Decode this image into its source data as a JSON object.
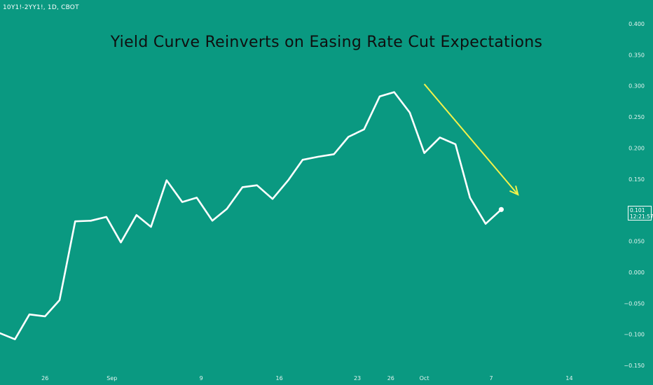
{
  "symbol_info": "10Y1!-2YY1!, 1D, CBOT",
  "colors": {
    "background": "#0a9981",
    "line": "#ffffff",
    "arrow": "#f2f24a",
    "axis_text": "#e6f5f1"
  },
  "last_price": {
    "value": "0.101",
    "countdown": "12:21:57"
  },
  "chart_data": {
    "type": "line",
    "title": "Yield Curve Reinverts on Easing Rate Cut Expectations",
    "xlabel": "",
    "ylabel": "",
    "ylim": [
      -0.15,
      0.4
    ],
    "grid": false,
    "y_ticks": [
      "0.400",
      "0.350",
      "0.300",
      "0.250",
      "0.200",
      "0.150",
      "0.100",
      "0.050",
      "0.000",
      "−0.050",
      "−0.100",
      "−0.150"
    ],
    "x_ticks": [
      {
        "label": "26",
        "day": 4
      },
      {
        "label": "Sep",
        "day": 10
      },
      {
        "label": "9",
        "day": 18
      },
      {
        "label": "16",
        "day": 25
      },
      {
        "label": "23",
        "day": 32
      },
      {
        "label": "26",
        "day": 35
      },
      {
        "label": "Oct",
        "day": 38
      },
      {
        "label": "7",
        "day": 44
      },
      {
        "label": "14",
        "day": 51
      }
    ],
    "series": [
      {
        "points": [
          [
            -0.05,
            -0.098
          ],
          [
            1.3,
            -0.108
          ],
          [
            2.6,
            -0.068
          ],
          [
            4,
            -0.071
          ],
          [
            5.3,
            -0.045
          ],
          [
            6.7,
            0.082
          ],
          [
            8.1,
            0.083
          ],
          [
            9.5,
            0.089
          ],
          [
            10.8,
            0.048
          ],
          [
            12.2,
            0.092
          ],
          [
            13.5,
            0.073
          ],
          [
            14.9,
            0.148
          ],
          [
            16.3,
            0.113
          ],
          [
            17.6,
            0.12
          ],
          [
            19,
            0.083
          ],
          [
            20.3,
            0.102
          ],
          [
            21.7,
            0.137
          ],
          [
            23,
            0.14
          ],
          [
            24.4,
            0.118
          ],
          [
            25.8,
            0.148
          ],
          [
            27.1,
            0.181
          ],
          [
            28.5,
            0.186
          ],
          [
            29.9,
            0.19
          ],
          [
            31.2,
            0.218
          ],
          [
            32.6,
            0.23
          ],
          [
            34,
            0.283
          ],
          [
            35.3,
            0.29
          ],
          [
            36.7,
            0.257
          ],
          [
            38,
            0.192
          ],
          [
            39.4,
            0.217
          ],
          [
            40.8,
            0.206
          ],
          [
            42.1,
            0.12
          ],
          [
            43.5,
            0.078
          ],
          [
            44.9,
            0.101
          ]
        ]
      }
    ],
    "annotation_arrow": {
      "from": [
        38,
        0.303
      ],
      "to": [
        46.4,
        0.125
      ]
    }
  }
}
